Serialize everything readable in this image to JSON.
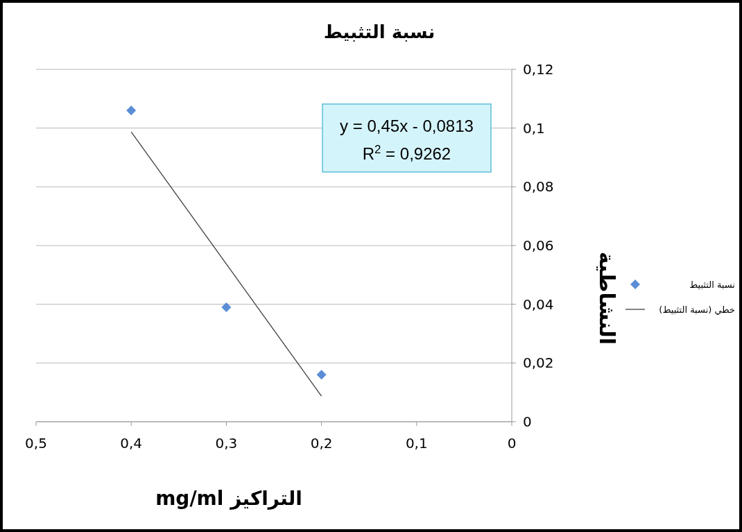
{
  "chart_data": {
    "type": "scatter",
    "title": "نسبة التثبيط",
    "xlabel": "التراكيز mg/ml",
    "ylabel": "النشاطية",
    "x": [
      0.4,
      0.3,
      0.2
    ],
    "series": [
      {
        "name": "نسبة التثبيط",
        "type": "scatter",
        "color": "#5b8dd6",
        "marker": "diamond",
        "values": [
          0.106,
          0.039,
          0.016
        ]
      },
      {
        "name": "خطي (نسبة التثبيط)",
        "type": "line",
        "color": "#404040",
        "marker": "none",
        "x": [
          0.4,
          0.2
        ],
        "values": [
          0.0987,
          0.0087
        ]
      }
    ],
    "xlim": [
      0.5,
      0
    ],
    "xticks": [
      {
        "value": 0.5,
        "label": "0,5"
      },
      {
        "value": 0.4,
        "label": "0,4"
      },
      {
        "value": 0.3,
        "label": "0,3"
      },
      {
        "value": 0.2,
        "label": "0,2"
      },
      {
        "value": 0.1,
        "label": "0,1"
      },
      0
    ],
    "ylim": [
      0,
      0.12
    ],
    "yticks": [
      0,
      {
        "value": 0.02,
        "label": "0,02"
      },
      {
        "value": 0.04,
        "label": "0,04"
      },
      {
        "value": 0.06,
        "label": "0,06"
      },
      {
        "value": 0.08,
        "label": "0,08"
      },
      {
        "value": 0.1,
        "label": "0,1"
      },
      {
        "value": 0.12,
        "label": "0,12"
      }
    ],
    "grid": "y",
    "legend": "right",
    "annotations": [
      "y = 0,45x - 0,0813",
      "R$^{2}$ = 0,9262"
    ]
  }
}
